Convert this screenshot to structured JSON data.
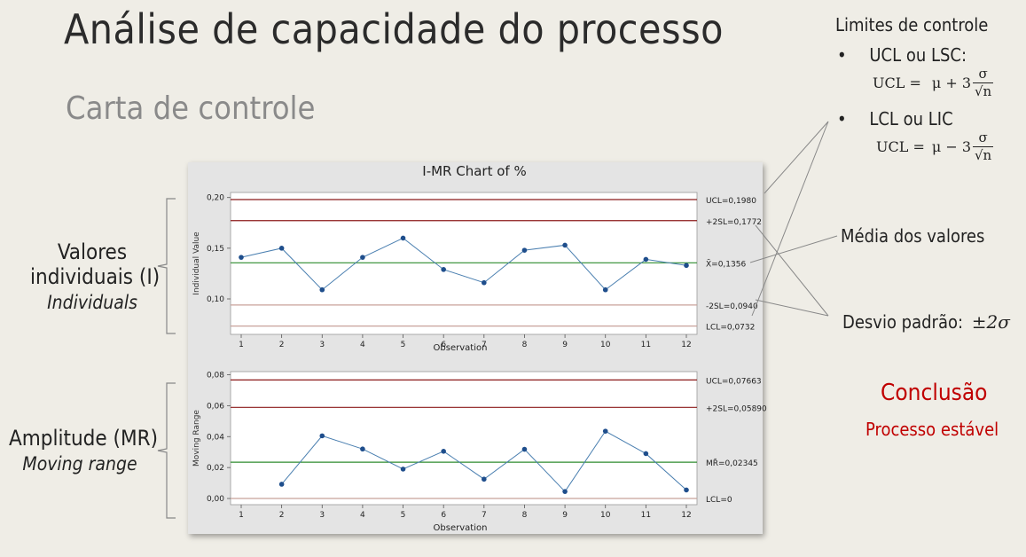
{
  "slide": {
    "title": "Análise de capacidade do processo",
    "subtitle": "Carta de controle"
  },
  "limits": {
    "heading": "Limites de controle",
    "ucl_label": "UCL ou LSC:",
    "ucl_formula_lhs": "UCL =",
    "ucl_formula_rhs": "μ + 3",
    "lcl_label": "LCL ou LIC",
    "lcl_formula_lhs": "UCL =",
    "lcl_formula_rhs": "μ − 3",
    "frac_num": "σ",
    "frac_den": "√n"
  },
  "left_labels": {
    "individuals_line1": "Valores",
    "individuals_line2": "individuais (I)",
    "individuals_en": "Individuals",
    "mr_line1": "Amplitude (MR)",
    "mr_en": "Moving range"
  },
  "annotations": {
    "media": "Média dos valores",
    "desvio": "Desvio padrão:",
    "desvio_symbol": "±2σ"
  },
  "conclusion": {
    "title": "Conclusão",
    "text": "Processo estável"
  },
  "colors": {
    "limit_line": "#8b1a1a",
    "sigma_line": "#c8a29a",
    "center_line": "#2e8b2e",
    "data_line": "#4a7fb0",
    "data_point": "#1f4e8c",
    "conclusion": "#c00000"
  },
  "chart_data": [
    {
      "type": "line",
      "title": "I-MR Chart of %",
      "xlabel": "Observation",
      "ylabel": "Individual Value",
      "x": [
        1,
        2,
        3,
        4,
        5,
        6,
        7,
        8,
        9,
        10,
        11,
        12
      ],
      "y": [
        0.141,
        0.15,
        0.109,
        0.141,
        0.16,
        0.129,
        0.116,
        0.148,
        0.153,
        0.109,
        0.139,
        0.133
      ],
      "ylim": [
        0.065,
        0.205
      ],
      "yticks": [
        "0,10",
        "0,15",
        "0,20"
      ],
      "ytick_values": [
        0.1,
        0.15,
        0.2
      ],
      "reference_lines": [
        {
          "label": "UCL=0,1980",
          "value": 0.198,
          "style": "limit"
        },
        {
          "label": "+2SL=0,1772",
          "value": 0.1772,
          "style": "limit"
        },
        {
          "label": "X̄=0,1356",
          "value": 0.1356,
          "style": "center"
        },
        {
          "label": "-2SL=0,0940",
          "value": 0.094,
          "style": "sigma"
        },
        {
          "label": "LCL=0,0732",
          "value": 0.0732,
          "style": "sigma"
        }
      ]
    },
    {
      "type": "line",
      "xlabel": "Observation",
      "ylabel": "Moving Range",
      "x": [
        2,
        3,
        4,
        5,
        6,
        7,
        8,
        9,
        10,
        11,
        12
      ],
      "y": [
        0.0092,
        0.0405,
        0.032,
        0.019,
        0.0305,
        0.0125,
        0.0318,
        0.0045,
        0.0435,
        0.029,
        0.0055
      ],
      "ylim": [
        -0.004,
        0.082
      ],
      "yticks": [
        "0,00",
        "0,02",
        "0,04",
        "0,06",
        "0,08"
      ],
      "ytick_values": [
        0.0,
        0.02,
        0.04,
        0.06,
        0.08
      ],
      "reference_lines": [
        {
          "label": "UCL=0,07663",
          "value": 0.07663,
          "style": "limit"
        },
        {
          "label": "+2SL=0,05890",
          "value": 0.0589,
          "style": "limit"
        },
        {
          "label": "MR̄=0,02345",
          "value": 0.02345,
          "style": "center"
        },
        {
          "label": "LCL=0",
          "value": 0.0,
          "style": "sigma"
        }
      ]
    }
  ]
}
